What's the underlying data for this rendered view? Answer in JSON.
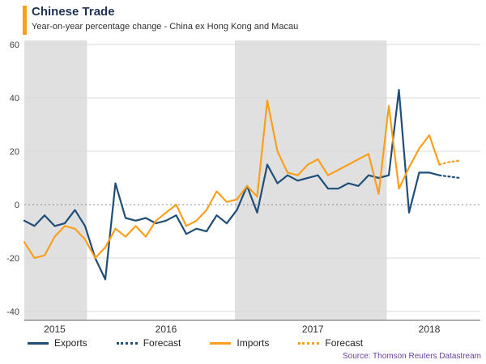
{
  "header": {
    "title": "Chinese Trade",
    "subtitle": "Year-on-year percentage change - China ex Hong Kong and Macau"
  },
  "footer": {
    "source": "Source: Thomson Reuters Datastream"
  },
  "colors": {
    "exports_line": "#1f4e79",
    "imports_line": "#f8a01c",
    "shaded_band": "#e0e0e0",
    "gridline": "#d9d9d9",
    "zero_line": "#8c8c8c",
    "axis_line": "#7f7f7f",
    "accent_bar": "#f8a01c",
    "source_text": "#6b3fa0"
  },
  "chart_data": {
    "type": "line",
    "title": "Chinese Trade",
    "subtitle": "Year-on-year percentage change - China ex Hong Kong and Macau",
    "xlabel": "",
    "ylabel": "",
    "ylim": [
      -40,
      60
    ],
    "yticks": [
      60,
      40,
      20,
      0,
      -20,
      -40
    ],
    "grid": "horizontal",
    "legend_position": "bottom",
    "x_unit": "monthly observations, index 0 = start of 2015",
    "xticks": [
      {
        "label": "2015",
        "pos": 3
      },
      {
        "label": "2016",
        "pos": 14
      },
      {
        "label": "2017",
        "pos": 28.5
      },
      {
        "label": "2018",
        "pos": 40
      }
    ],
    "shaded_bands": [
      [
        0,
        6.2
      ],
      [
        20.8,
        35.8
      ]
    ],
    "series": [
      {
        "name": "Exports",
        "color": "#1f4e79",
        "line_style": "solid",
        "x_start": 0,
        "values": [
          -6,
          -8,
          -4,
          -8,
          -7,
          -2,
          -8,
          -20,
          -28,
          8,
          -5,
          -6,
          -5,
          -7,
          -6,
          -4,
          -11,
          -9,
          -10,
          -4,
          -7,
          -2,
          7,
          -3,
          15,
          8,
          11,
          9,
          10,
          11,
          6,
          6,
          8,
          7,
          11,
          10,
          11,
          43,
          -3,
          12,
          12,
          11
        ]
      },
      {
        "name": "Forecast",
        "color": "#1f4e79",
        "line_style": "dotted",
        "x_start": 41,
        "values": [
          11,
          10.5,
          10
        ]
      },
      {
        "name": "Imports",
        "color": "#f8a01c",
        "line_style": "solid",
        "x_start": 0,
        "values": [
          -14,
          -20,
          -19,
          -12,
          -8,
          -9,
          -13,
          -20,
          -16,
          -9,
          -12,
          -8,
          -12,
          -6,
          -3,
          0,
          -8,
          -6,
          -2,
          5,
          1,
          2,
          7,
          3,
          39,
          20,
          12,
          11,
          15,
          17,
          11,
          13,
          15,
          17,
          19,
          4,
          37,
          6,
          14,
          21,
          26,
          15
        ]
      },
      {
        "name": "Forecast",
        "color": "#f8a01c",
        "line_style": "dotted",
        "x_start": 41,
        "values": [
          15,
          16,
          16.5
        ]
      }
    ]
  }
}
